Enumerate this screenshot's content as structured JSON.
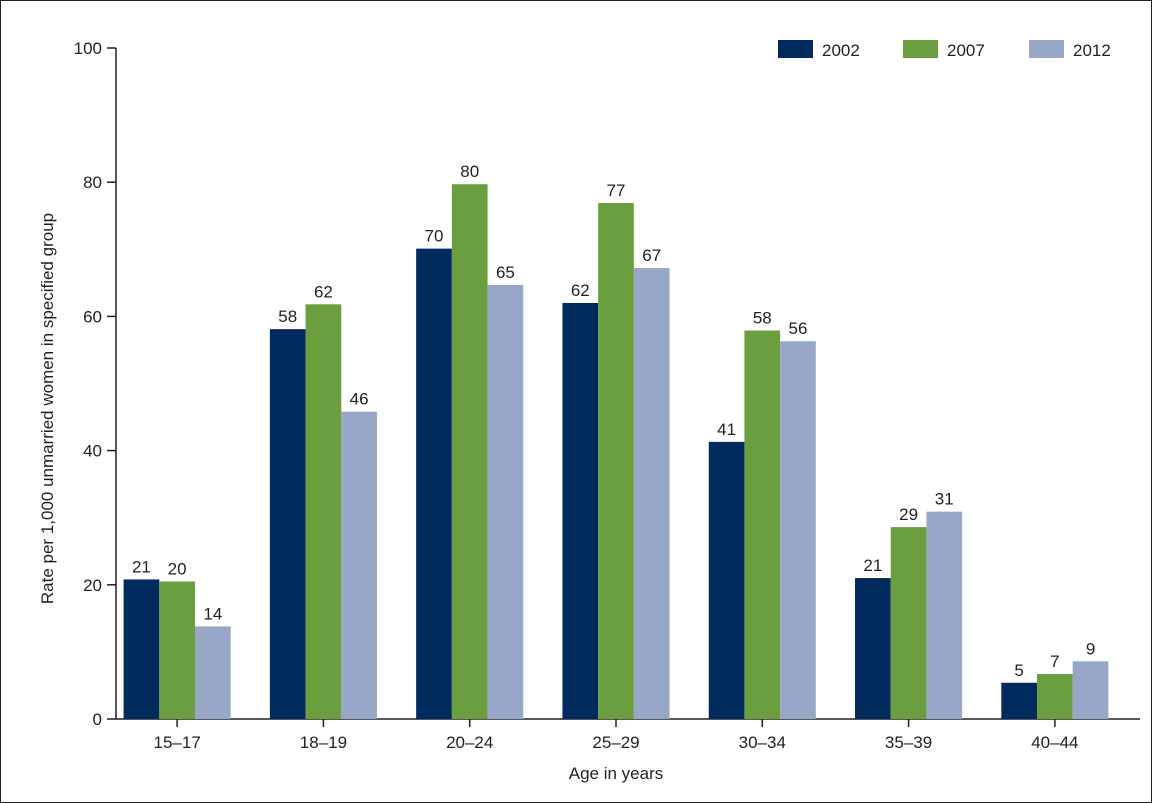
{
  "chart_data": {
    "type": "bar",
    "title": "",
    "xlabel": "Age in years",
    "ylabel": "Rate per 1,000 unmarried women in specified group",
    "ylim": [
      0,
      100
    ],
    "yticks": [
      0,
      20,
      40,
      60,
      80,
      100
    ],
    "grid": false,
    "legend_position": "top-right",
    "categories": [
      "15–17",
      "18–19",
      "20–24",
      "25–29",
      "30–34",
      "35–39",
      "40–44"
    ],
    "series": [
      {
        "name": "2002",
        "color": "#002b5c",
        "values": [
          20.8,
          58.1,
          70.1,
          62.0,
          41.3,
          21.0,
          5.4
        ],
        "labels": [
          "21",
          "58",
          "70",
          "62",
          "41",
          "21",
          "5"
        ]
      },
      {
        "name": "2007",
        "color": "#6a9e3f",
        "values": [
          20.5,
          61.8,
          79.7,
          76.9,
          57.9,
          28.6,
          6.7
        ],
        "labels": [
          "20",
          "62",
          "80",
          "77",
          "58",
          "29",
          "7"
        ]
      },
      {
        "name": "2012",
        "color": "#98a7c7",
        "values": [
          13.8,
          45.8,
          64.7,
          67.2,
          56.3,
          30.9,
          8.6
        ],
        "labels": [
          "14",
          "46",
          "65",
          "67",
          "56",
          "31",
          "9"
        ]
      }
    ]
  }
}
